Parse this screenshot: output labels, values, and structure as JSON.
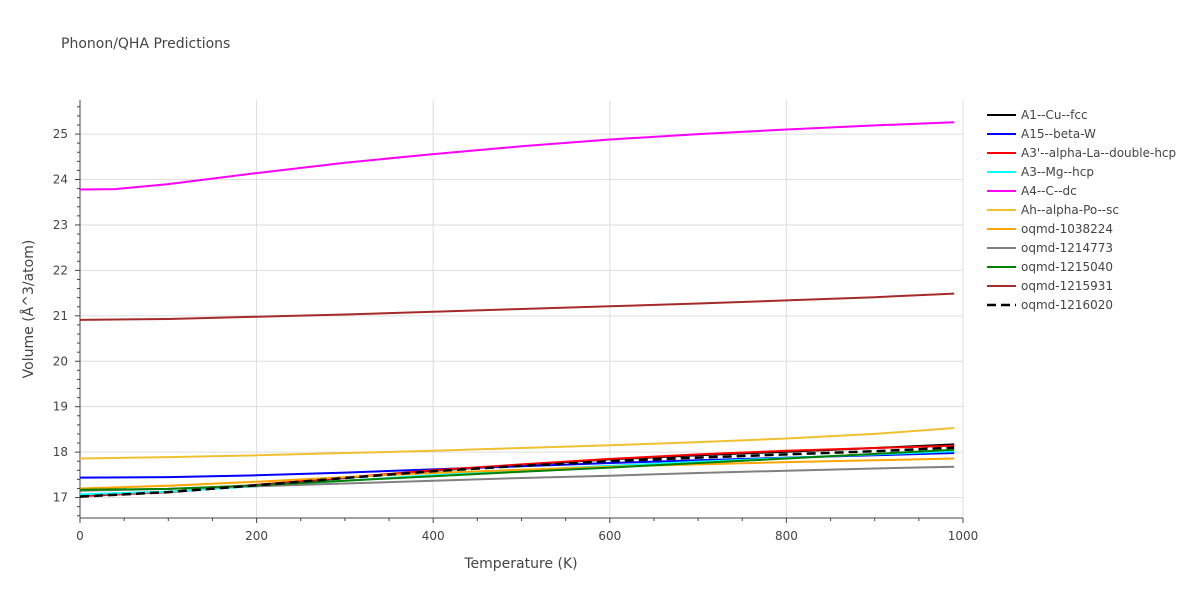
{
  "chart_data": {
    "type": "line",
    "title": "Phonon/QHA Predictions",
    "xlabel": "Temperature (K)",
    "ylabel": "Volume (Å^3/atom)",
    "xlim": [
      0,
      1000
    ],
    "ylim": [
      16.55,
      25.75
    ],
    "x_ticks": [
      0,
      200,
      400,
      600,
      800,
      1000
    ],
    "y_ticks": [
      17,
      18,
      19,
      20,
      21,
      22,
      23,
      24,
      25
    ],
    "grid": true,
    "legend_position": "right",
    "series": [
      {
        "name": "A1--Cu--fcc",
        "color": "#000000",
        "dash": "solid",
        "x": [
          0,
          100,
          200,
          300,
          400,
          500,
          600,
          700,
          800,
          900,
          990
        ],
        "y": [
          17.05,
          17.12,
          17.27,
          17.43,
          17.59,
          17.72,
          17.84,
          17.93,
          18.01,
          18.09,
          18.17
        ]
      },
      {
        "name": "A15--beta-W",
        "color": "#0000ff",
        "dash": "solid",
        "x": [
          0,
          100,
          200,
          300,
          400,
          500,
          600,
          700,
          800,
          900,
          990
        ],
        "y": [
          17.44,
          17.45,
          17.49,
          17.55,
          17.62,
          17.69,
          17.76,
          17.82,
          17.88,
          17.93,
          17.98
        ]
      },
      {
        "name": "A3'--alpha-La--double-hcp",
        "color": "#ff0000",
        "dash": "solid",
        "x": [
          0,
          100,
          200,
          300,
          400,
          500,
          600,
          700,
          800,
          900,
          990
        ],
        "y": [
          17.03,
          17.12,
          17.28,
          17.44,
          17.6,
          17.73,
          17.85,
          17.95,
          18.03,
          18.09,
          18.14
        ]
      },
      {
        "name": "A3--Mg--hcp",
        "color": "#00ffff",
        "dash": "solid",
        "x": [
          0,
          100,
          200,
          300,
          400,
          500,
          600,
          700,
          800,
          900,
          990
        ],
        "y": [
          17.07,
          17.13,
          17.25,
          17.37,
          17.49,
          17.6,
          17.7,
          17.79,
          17.87,
          17.95,
          18.02
        ]
      },
      {
        "name": "A4--C--dc",
        "color": "#ff00ff",
        "dash": "solid",
        "x": [
          0,
          40,
          100,
          200,
          300,
          400,
          500,
          600,
          700,
          800,
          900,
          990
        ],
        "y": [
          23.78,
          23.79,
          23.9,
          24.14,
          24.37,
          24.56,
          24.73,
          24.88,
          25.0,
          25.1,
          25.19,
          25.26
        ]
      },
      {
        "name": "Ah--alpha-Po--sc",
        "color": "#f0c030",
        "dash": "solid",
        "x": [
          0,
          100,
          200,
          300,
          400,
          500,
          600,
          700,
          800,
          900,
          990
        ],
        "y": [
          17.86,
          17.89,
          17.93,
          17.98,
          18.03,
          18.09,
          18.15,
          18.22,
          18.3,
          18.4,
          18.53
        ]
      },
      {
        "name": "oqmd-1038224",
        "color": "#ffa500",
        "dash": "solid",
        "x": [
          0,
          100,
          200,
          300,
          400,
          500,
          600,
          700,
          800,
          900,
          990
        ],
        "y": [
          17.2,
          17.26,
          17.35,
          17.45,
          17.54,
          17.61,
          17.68,
          17.73,
          17.78,
          17.82,
          17.86
        ]
      },
      {
        "name": "oqmd-1214773",
        "color": "#808080",
        "dash": "solid",
        "x": [
          0,
          100,
          200,
          300,
          400,
          500,
          600,
          700,
          800,
          900,
          990
        ],
        "y": [
          17.15,
          17.19,
          17.25,
          17.31,
          17.37,
          17.43,
          17.48,
          17.54,
          17.59,
          17.64,
          17.68
        ]
      },
      {
        "name": "oqmd-1215040",
        "color": "#008000",
        "dash": "solid",
        "x": [
          0,
          100,
          200,
          300,
          400,
          500,
          600,
          700,
          800,
          900,
          990
        ],
        "y": [
          17.17,
          17.19,
          17.27,
          17.37,
          17.47,
          17.57,
          17.66,
          17.76,
          17.86,
          17.96,
          18.05
        ]
      },
      {
        "name": "oqmd-1215931",
        "color": "#a52a2a",
        "dash": "solid",
        "x": [
          0,
          100,
          200,
          300,
          400,
          500,
          600,
          700,
          800,
          900,
          990
        ],
        "y": [
          20.91,
          20.93,
          20.98,
          21.03,
          21.09,
          21.15,
          21.21,
          21.27,
          21.34,
          21.41,
          21.49
        ]
      },
      {
        "name": "oqmd-1216020",
        "color": "#000000",
        "dash": "dash",
        "x": [
          0,
          100,
          200,
          300,
          400,
          500,
          600,
          700,
          800,
          900,
          990
        ],
        "y": [
          17.02,
          17.12,
          17.27,
          17.43,
          17.58,
          17.7,
          17.8,
          17.88,
          17.95,
          18.02,
          18.1
        ]
      }
    ]
  }
}
